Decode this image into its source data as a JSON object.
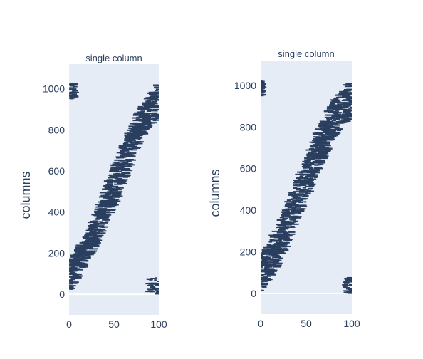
{
  "chart_data": [
    {
      "type": "scatter",
      "title": "single column",
      "xlabel": "",
      "ylabel": "columns",
      "xlim": [
        0,
        100
      ],
      "ylim": [
        -100,
        1120
      ],
      "xticks": [
        0,
        50,
        100
      ],
      "yticks": [
        0,
        200,
        400,
        600,
        800,
        1000
      ],
      "grid": false,
      "background": "#e5ecf6",
      "marker_color": "#2a3f5f",
      "marker": "short horizontal dash",
      "series": [
        {
          "description": "dense diagonal band of dash markers",
          "band": [
            {
              "x": 0,
              "y_low": 0,
              "y_high": 160
            },
            {
              "x": 20,
              "y_low": 150,
              "y_high": 300
            },
            {
              "x": 40,
              "y_low": 330,
              "y_high": 520
            },
            {
              "x": 60,
              "y_low": 520,
              "y_high": 720
            },
            {
              "x": 80,
              "y_low": 760,
              "y_high": 920
            },
            {
              "x": 100,
              "y_low": 860,
              "y_high": 1030
            }
          ]
        },
        {
          "description": "top-left cluster",
          "x_range": [
            0,
            8
          ],
          "y_range": [
            950,
            1025
          ]
        },
        {
          "description": "bottom-right cluster",
          "x_range": [
            88,
            100
          ],
          "y_range": [
            0,
            80
          ]
        }
      ]
    },
    {
      "type": "scatter",
      "title": "single column",
      "xlabel": "",
      "ylabel": "columns",
      "xlim": [
        0,
        100
      ],
      "ylim": [
        -100,
        1120
      ],
      "xticks": [
        0,
        50,
        100
      ],
      "yticks": [
        0,
        200,
        400,
        600,
        800,
        1000
      ],
      "grid": false,
      "background": "#e5ecf6",
      "marker_color": "#2a3f5f",
      "marker": "short horizontal dash",
      "series": [
        {
          "description": "dense diagonal band of dash markers",
          "band": [
            {
              "x": 0,
              "y_low": 0,
              "y_high": 180
            },
            {
              "x": 20,
              "y_low": 140,
              "y_high": 330
            },
            {
              "x": 40,
              "y_low": 350,
              "y_high": 560
            },
            {
              "x": 60,
              "y_low": 550,
              "y_high": 760
            },
            {
              "x": 80,
              "y_low": 750,
              "y_high": 930
            },
            {
              "x": 100,
              "y_low": 850,
              "y_high": 1030
            }
          ]
        },
        {
          "description": "top-left cluster",
          "x_range": [
            0,
            3
          ],
          "y_range": [
            950,
            1025
          ]
        },
        {
          "description": "bottom-right cluster",
          "x_range": [
            92,
            100
          ],
          "y_range": [
            0,
            80
          ]
        }
      ]
    }
  ]
}
